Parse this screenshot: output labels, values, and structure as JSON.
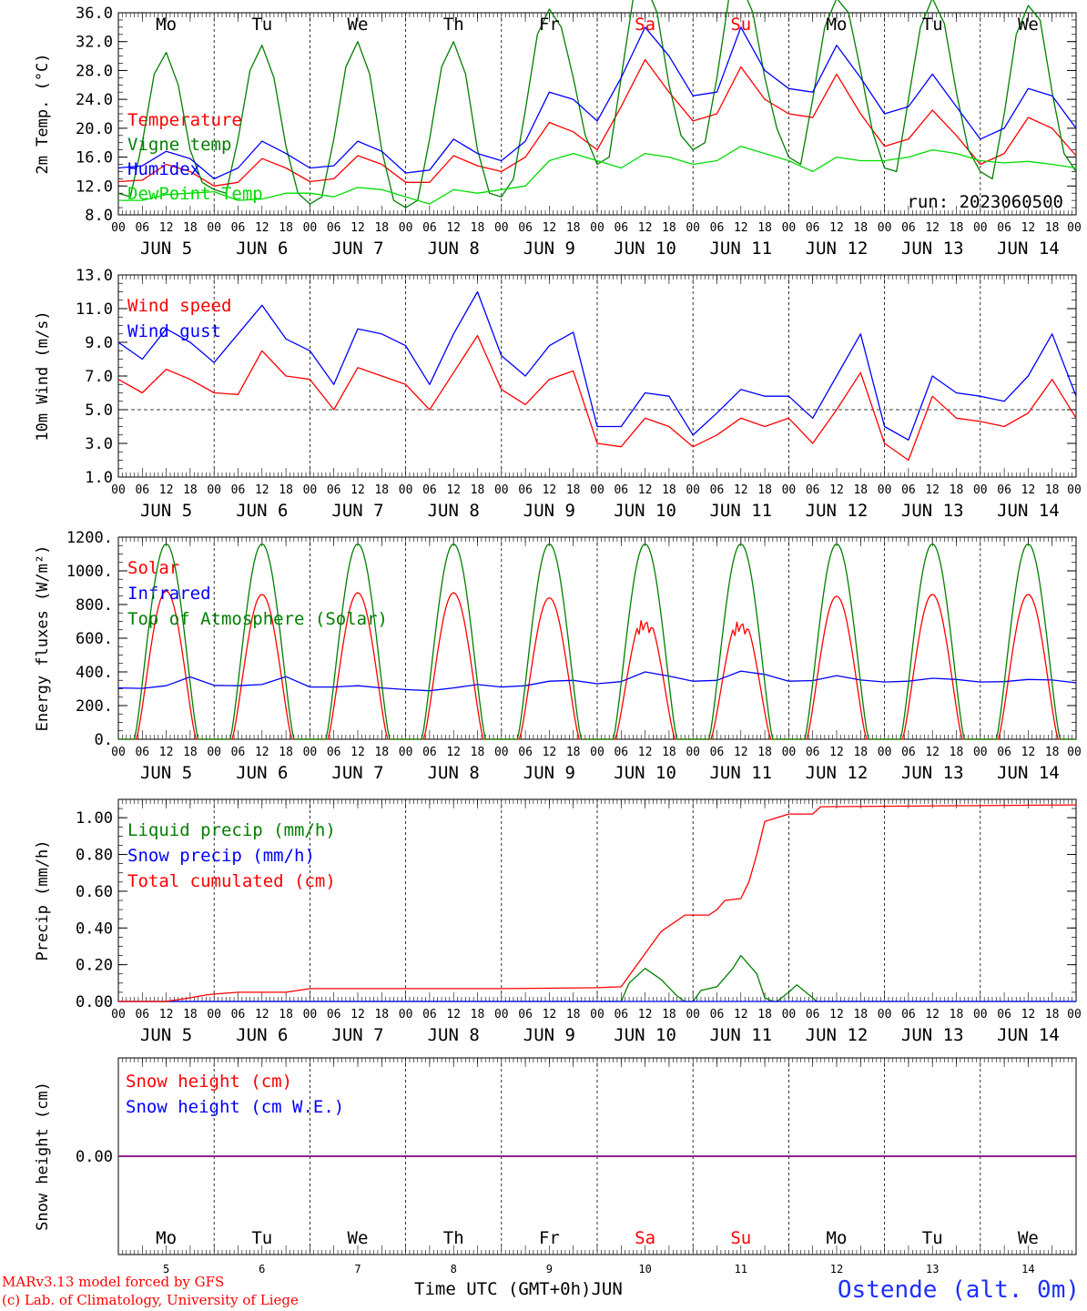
{
  "run_label": "run: 2023060500",
  "footer": {
    "credit_line1": "MARv3.13 model forced by GFS",
    "credit_line2": "(c) Lab. of Climatology, University of Liege",
    "x_axis_title": "Time UTC (GMT+0h)",
    "month": "JUN",
    "station": "Ostende (alt. 0m)"
  },
  "days": [
    {
      "abbr": "Mo",
      "date": "5",
      "weekend": false
    },
    {
      "abbr": "Tu",
      "date": "6",
      "weekend": false
    },
    {
      "abbr": "We",
      "date": "7",
      "weekend": false
    },
    {
      "abbr": "Th",
      "date": "8",
      "weekend": false
    },
    {
      "abbr": "Fr",
      "date": "9",
      "weekend": false
    },
    {
      "abbr": "Sa",
      "date": "10",
      "weekend": true
    },
    {
      "abbr": "Su",
      "date": "11",
      "weekend": true
    },
    {
      "abbr": "Mo",
      "date": "12",
      "weekend": false
    },
    {
      "abbr": "Tu",
      "date": "13",
      "weekend": false
    },
    {
      "abbr": "We",
      "date": "14",
      "weekend": false
    }
  ],
  "hour_ticks": [
    "00",
    "06",
    "12",
    "18"
  ],
  "last_hour_tick": "00",
  "colors": {
    "red": "#ff0000",
    "green": "#007f00",
    "blue": "#0000ff",
    "lightgreen": "#00dd00",
    "purple": "#7f007f",
    "weekend": "#ff0000"
  },
  "chart_data": [
    {
      "id": "temperature",
      "type": "line",
      "ylabel": "2m Temp. (°C)",
      "ylim": [
        8.0,
        36.0
      ],
      "yticks": [
        "8.0",
        "12.0",
        "16.0",
        "20.0",
        "24.0",
        "28.0",
        "32.0",
        "36.0"
      ],
      "x_unit": "hours since 2023-06-05 00 UTC",
      "series": [
        {
          "name": "Temperature",
          "color": "red",
          "x": [
            0,
            6,
            12,
            18,
            24,
            30,
            36,
            42,
            48,
            54,
            60,
            66,
            72,
            78,
            84,
            90,
            96,
            102,
            108,
            114,
            120,
            126,
            132,
            138,
            144,
            150,
            156,
            162,
            168,
            174,
            180,
            186,
            192,
            198,
            204,
            210,
            216,
            222,
            228,
            234,
            240
          ],
          "y": [
            12.6,
            12.8,
            15.0,
            14.0,
            12.0,
            12.5,
            15.8,
            14.5,
            12.6,
            13.0,
            16.2,
            15.0,
            12.5,
            12.5,
            16.2,
            14.8,
            14.0,
            16.0,
            20.8,
            19.5,
            17.0,
            23.0,
            29.5,
            25.0,
            21.0,
            22.0,
            28.5,
            24.0,
            22.0,
            21.5,
            27.5,
            22.0,
            17.5,
            18.5,
            22.5,
            19.0,
            15.0,
            16.5,
            21.5,
            20.0,
            16.2
          ]
        },
        {
          "name": "Vigne temp",
          "color": "green",
          "x": [
            0,
            3,
            6,
            9,
            12,
            15,
            18,
            21,
            24,
            27,
            30,
            33,
            36,
            39,
            42,
            45,
            48,
            51,
            54,
            57,
            60,
            63,
            66,
            69,
            72,
            75,
            78,
            81,
            84,
            87,
            90,
            93,
            96,
            99,
            102,
            105,
            108,
            111,
            114,
            117,
            120,
            123,
            126,
            129,
            132,
            135,
            138,
            141,
            144,
            147,
            150,
            153,
            156,
            159,
            162,
            165,
            168,
            171,
            174,
            177,
            180,
            183,
            186,
            189,
            192,
            195,
            198,
            201,
            204,
            207,
            210,
            213,
            216,
            219,
            222,
            225,
            228,
            231,
            234,
            237,
            240
          ],
          "y": [
            11.0,
            10.5,
            18.0,
            27.5,
            30.5,
            26.0,
            17.0,
            12.5,
            11.5,
            11.0,
            18.5,
            28.0,
            31.5,
            27.0,
            17.5,
            11.0,
            9.5,
            10.5,
            18.5,
            28.5,
            32.0,
            27.5,
            17.0,
            10.0,
            9.0,
            10.0,
            18.5,
            28.5,
            32.0,
            27.5,
            17.0,
            11.0,
            10.5,
            13.0,
            22.5,
            33.0,
            36.5,
            34.0,
            27.0,
            19.0,
            15.0,
            16.0,
            27.0,
            38.0,
            40.0,
            36.0,
            26.0,
            19.0,
            17.0,
            18.0,
            27.0,
            38.0,
            40.0,
            36.0,
            27.0,
            20.0,
            16.0,
            15.0,
            24.0,
            34.0,
            38.0,
            36.0,
            28.0,
            19.5,
            14.5,
            14.0,
            24.0,
            34.0,
            38.0,
            34.5,
            25.0,
            17.0,
            14.0,
            13.0,
            22.0,
            33.0,
            37.0,
            35.0,
            25.0,
            16.5,
            14.0
          ]
        },
        {
          "name": "Humidex",
          "color": "blue",
          "x": [
            0,
            6,
            12,
            18,
            24,
            30,
            36,
            42,
            48,
            54,
            60,
            66,
            72,
            78,
            84,
            90,
            96,
            102,
            108,
            114,
            120,
            126,
            132,
            138,
            144,
            150,
            156,
            162,
            168,
            174,
            180,
            186,
            192,
            198,
            204,
            210,
            216,
            222,
            228,
            234,
            240
          ],
          "y": [
            14.5,
            14.8,
            16.8,
            15.8,
            13.0,
            14.5,
            18.2,
            16.5,
            14.5,
            14.8,
            18.2,
            16.8,
            13.8,
            14.2,
            18.5,
            16.5,
            15.5,
            18.2,
            25.0,
            24.0,
            21.0,
            27.0,
            34.0,
            30.0,
            24.5,
            25.0,
            34.0,
            28.0,
            25.5,
            25.0,
            31.5,
            27.0,
            22.0,
            23.0,
            27.5,
            23.0,
            18.5,
            20.0,
            25.5,
            24.5,
            20.0
          ]
        },
        {
          "name": "DewPoint Temp",
          "color": "lightgreen",
          "x": [
            0,
            6,
            12,
            18,
            24,
            30,
            36,
            42,
            48,
            54,
            60,
            66,
            72,
            78,
            84,
            90,
            96,
            102,
            108,
            114,
            120,
            126,
            132,
            138,
            144,
            150,
            156,
            162,
            168,
            174,
            180,
            186,
            192,
            198,
            204,
            210,
            216,
            222,
            228,
            234,
            240
          ],
          "y": [
            10.0,
            10.0,
            10.8,
            11.0,
            11.2,
            10.0,
            10.2,
            11.0,
            11.0,
            10.5,
            11.8,
            11.5,
            10.5,
            9.5,
            11.5,
            11.0,
            11.5,
            12.0,
            15.5,
            16.5,
            15.5,
            14.5,
            16.5,
            16.0,
            15.0,
            15.5,
            17.5,
            16.5,
            15.5,
            14.0,
            16.0,
            15.5,
            15.5,
            16.0,
            17.0,
            16.5,
            15.5,
            15.2,
            15.4,
            15.0,
            14.5
          ]
        }
      ]
    },
    {
      "id": "wind",
      "type": "line",
      "ylabel": "10m Wind (m/s)",
      "ylim": [
        1.0,
        13.0
      ],
      "yticks": [
        "1.0",
        "3.0",
        "5.0",
        "7.0",
        "9.0",
        "11.0",
        "13.0"
      ],
      "reference_line": 5.0,
      "x_unit": "hours since 2023-06-05 00 UTC",
      "series": [
        {
          "name": "Wind speed",
          "color": "red",
          "x": [
            0,
            6,
            12,
            18,
            24,
            30,
            36,
            42,
            48,
            54,
            60,
            66,
            72,
            78,
            84,
            90,
            96,
            102,
            108,
            114,
            120,
            126,
            132,
            138,
            144,
            150,
            156,
            162,
            168,
            174,
            180,
            186,
            192,
            198,
            204,
            210,
            216,
            222,
            228,
            234,
            240
          ],
          "y": [
            6.8,
            6.0,
            7.4,
            6.8,
            6.0,
            5.9,
            8.5,
            7.0,
            6.8,
            5.0,
            7.5,
            7.0,
            6.5,
            5.0,
            7.2,
            9.4,
            6.2,
            5.3,
            6.8,
            7.3,
            3.0,
            2.8,
            4.5,
            4.0,
            2.8,
            3.5,
            4.5,
            4.0,
            4.5,
            3.0,
            5.0,
            7.2,
            3.0,
            2.0,
            5.8,
            4.5,
            4.3,
            4.0,
            4.8,
            6.8,
            4.5
          ]
        },
        {
          "name": "Wind gust",
          "color": "blue",
          "x": [
            0,
            6,
            12,
            18,
            24,
            30,
            36,
            42,
            48,
            54,
            60,
            66,
            72,
            78,
            84,
            90,
            96,
            102,
            108,
            114,
            120,
            126,
            132,
            138,
            144,
            150,
            156,
            162,
            168,
            174,
            180,
            186,
            192,
            198,
            204,
            210,
            216,
            222,
            228,
            234,
            240
          ],
          "y": [
            9.0,
            8.0,
            9.8,
            9.0,
            7.8,
            9.5,
            11.2,
            9.2,
            8.5,
            6.5,
            9.8,
            9.5,
            8.8,
            6.5,
            9.5,
            12.0,
            8.2,
            7.0,
            8.8,
            9.6,
            4.0,
            4.0,
            6.0,
            5.8,
            3.5,
            4.8,
            6.2,
            5.8,
            5.8,
            4.5,
            7.0,
            9.5,
            4.0,
            3.2,
            7.0,
            6.0,
            5.8,
            5.5,
            7.0,
            9.5,
            5.8
          ]
        }
      ]
    },
    {
      "id": "energy",
      "type": "line",
      "ylabel": "Energy fluxes (W/m²)",
      "ylim": [
        0,
        1200
      ],
      "yticks": [
        "0.",
        "200.",
        "400.",
        "600.",
        "800.",
        "1000.",
        "1200."
      ],
      "x_unit": "hours since 2023-06-05 00 UTC",
      "daily_peaks": {
        "solar": [
          880,
          860,
          870,
          870,
          840,
          740,
          730,
          850,
          860,
          860
        ],
        "toa_solar": [
          1160,
          1160,
          1160,
          1160,
          1160,
          1160,
          1160,
          1160,
          1160,
          1160
        ]
      },
      "series": [
        {
          "name": "Solar",
          "color": "red"
        },
        {
          "name": "Infrared",
          "color": "blue",
          "x": [
            0,
            6,
            12,
            18,
            24,
            30,
            36,
            42,
            48,
            54,
            60,
            66,
            72,
            78,
            84,
            90,
            96,
            102,
            108,
            114,
            120,
            126,
            132,
            138,
            144,
            150,
            156,
            162,
            168,
            174,
            180,
            186,
            192,
            198,
            204,
            210,
            216,
            222,
            228,
            234,
            240
          ],
          "y": [
            305,
            302,
            318,
            370,
            320,
            318,
            325,
            372,
            310,
            310,
            318,
            305,
            295,
            288,
            305,
            325,
            310,
            318,
            345,
            350,
            330,
            342,
            400,
            375,
            345,
            350,
            405,
            385,
            345,
            348,
            378,
            352,
            340,
            345,
            362,
            355,
            340,
            342,
            355,
            352,
            335
          ]
        },
        {
          "name": "Top of Atmosphere (Solar)",
          "color": "green"
        }
      ]
    },
    {
      "id": "precip",
      "type": "line",
      "ylabel": "Precip (mm/h)",
      "ylim": [
        0.0,
        1.1
      ],
      "yticks": [
        "0.00",
        "0.20",
        "0.40",
        "0.60",
        "0.80",
        "1.00"
      ],
      "x_unit": "hours since 2023-06-05 00 UTC",
      "series": [
        {
          "name": "Liquid precip (mm/h)",
          "color": "green",
          "x": [
            0,
            126,
            128,
            132,
            136,
            140,
            142,
            144,
            146,
            150,
            154,
            156,
            160,
            162,
            164,
            165,
            168,
            170,
            174,
            175,
            176,
            240
          ],
          "y": [
            0,
            0,
            0.1,
            0.18,
            0.12,
            0.03,
            0,
            0,
            0.06,
            0.08,
            0.18,
            0.25,
            0.15,
            0.02,
            0,
            0,
            0.05,
            0.09,
            0.02,
            0,
            0,
            0
          ]
        },
        {
          "name": "Snow precip (mm/h)",
          "color": "blue",
          "x": [
            0,
            240
          ],
          "y": [
            0,
            0
          ]
        },
        {
          "name": "Total cumulated (cm)",
          "color": "red",
          "x": [
            0,
            12,
            18,
            22,
            24,
            30,
            36,
            42,
            48,
            96,
            120,
            126,
            130,
            136,
            142,
            144,
            148,
            150,
            152,
            156,
            158,
            160,
            162,
            168,
            172,
            174,
            176,
            240
          ],
          "y": [
            0,
            0,
            0.02,
            0.035,
            0.04,
            0.05,
            0.05,
            0.05,
            0.07,
            0.07,
            0.075,
            0.08,
            0.2,
            0.38,
            0.47,
            0.47,
            0.47,
            0.5,
            0.55,
            0.56,
            0.65,
            0.8,
            0.98,
            1.02,
            1.02,
            1.02,
            1.06,
            1.07
          ]
        }
      ]
    },
    {
      "id": "snow",
      "type": "line",
      "ylabel": "Snow height (cm)",
      "ylim": [
        -1,
        1
      ],
      "yticks": [
        "0.00"
      ],
      "x_unit": "hours since 2023-06-05 00 UTC",
      "series": [
        {
          "name": "Snow height (cm)",
          "color": "red",
          "x": [
            0,
            240
          ],
          "y": [
            0,
            0
          ]
        },
        {
          "name": "Snow height (cm W.E.)",
          "color": "blue",
          "x": [
            0,
            240
          ],
          "y": [
            0,
            0
          ]
        }
      ]
    }
  ]
}
